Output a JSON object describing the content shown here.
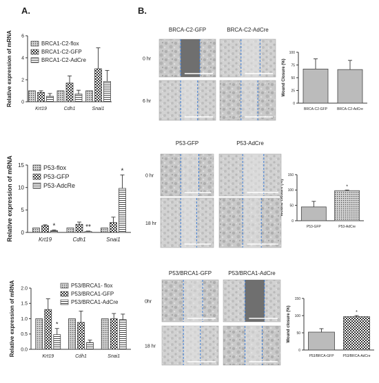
{
  "panels": {
    "a": "A.",
    "b": "B."
  },
  "colors": {
    "bar": "#bbbbbb",
    "stroke": "#444444",
    "error": "#333333",
    "axis": "#333333"
  },
  "chart_data": [
    {
      "type": "bar",
      "ylabel": "Relative expression of mRNA",
      "categories": [
        "Krt19",
        "Cdh1",
        "Snai1"
      ],
      "ylim": [
        0,
        6
      ],
      "yticks": [
        0,
        2,
        4,
        6
      ],
      "legend_position": "top-right",
      "series": [
        {
          "name": "BRCA1-C2-flox",
          "pattern": "dots",
          "values": [
            1.0,
            1.0,
            1.0
          ],
          "errors": [
            0.0,
            0.0,
            0.0
          ]
        },
        {
          "name": "BRCA1-C2-GFP",
          "pattern": "check",
          "values": [
            0.85,
            1.7,
            3.0
          ],
          "errors": [
            0.15,
            0.65,
            1.9
          ]
        },
        {
          "name": "BRCA1-C2-AdCre",
          "pattern": "hstripe",
          "values": [
            0.5,
            0.7,
            1.85
          ],
          "errors": [
            0.25,
            0.35,
            1.0
          ]
        }
      ],
      "significance": []
    },
    {
      "type": "bar",
      "ylabel": "Relative expression of mRNA",
      "categories": [
        "Krt19",
        "Cdh1",
        "Snai1"
      ],
      "ylim": [
        0,
        15
      ],
      "yticks": [
        0,
        5,
        10,
        15
      ],
      "legend_position": "top-right",
      "series": [
        {
          "name": "P53-flox",
          "pattern": "dots",
          "values": [
            1.0,
            1.0,
            1.0
          ],
          "errors": [
            0.0,
            0.0,
            0.0
          ]
        },
        {
          "name": "P53-GFP",
          "pattern": "check",
          "values": [
            1.5,
            1.8,
            2.2
          ],
          "errors": [
            0.2,
            0.5,
            1.2
          ]
        },
        {
          "name": "P53-AdcRe",
          "pattern": "hstripe",
          "values": [
            0.4,
            0.2,
            9.8
          ],
          "errors": [
            0.15,
            0.1,
            3.0
          ]
        }
      ],
      "significance": [
        {
          "category": 0,
          "series": 2,
          "label": "*"
        },
        {
          "category": 1,
          "series": 2,
          "label": "**"
        },
        {
          "category": 2,
          "series": 2,
          "label": "*"
        }
      ]
    },
    {
      "type": "bar",
      "ylabel": "Relative expression of mRNA",
      "categories": [
        "Krt19",
        "Cdh1",
        "Snai1"
      ],
      "ylim": [
        0,
        2.0
      ],
      "yticks": [
        0.0,
        0.5,
        1.0,
        1.5,
        2.0
      ],
      "legend_position": "top-right",
      "series": [
        {
          "name": "P53/BRCA1- flox",
          "pattern": "dots",
          "values": [
            1.0,
            1.0,
            1.0
          ],
          "errors": [
            0.0,
            0.0,
            0.0
          ]
        },
        {
          "name": "P53/BRCA1-GFP",
          "pattern": "check",
          "values": [
            1.3,
            0.88,
            1.0
          ],
          "errors": [
            0.35,
            0.37,
            0.17
          ]
        },
        {
          "name": "P53/BRCA1-AdCre",
          "pattern": "hstripe",
          "values": [
            0.48,
            0.22,
            0.97
          ],
          "errors": [
            0.2,
            0.08,
            0.18
          ]
        }
      ],
      "significance": [
        {
          "category": 0,
          "series": 2,
          "label": "*"
        }
      ]
    },
    {
      "type": "bar",
      "ylabel": "Wound Closure (%)",
      "categories": [
        "BRCA-C2-GFP",
        "BRCA-C2-AdCre"
      ],
      "ylim": [
        0,
        100
      ],
      "yticks": [
        0,
        25,
        50,
        75,
        100
      ],
      "series": [
        {
          "name": "",
          "patterns": [
            "none",
            "none"
          ],
          "values": [
            67,
            66
          ],
          "errors": [
            20,
            18
          ]
        }
      ],
      "significance": []
    },
    {
      "type": "bar",
      "ylabel": "Wound closure (%)",
      "categories": [
        "P53-GFP",
        "P53-AdCre"
      ],
      "ylim": [
        0,
        150
      ],
      "yticks": [
        0,
        50,
        100,
        150
      ],
      "series": [
        {
          "name": "",
          "patterns": [
            "none",
            "dots"
          ],
          "values": [
            45,
            98
          ],
          "errors": [
            18,
            2
          ]
        }
      ],
      "significance": [
        {
          "category": 1,
          "series": 0,
          "label": "*"
        }
      ]
    },
    {
      "type": "bar",
      "ylabel": "Wound closure (%)",
      "categories": [
        "P53/BRCA-GFP",
        "P53/BRCA-AdCre"
      ],
      "ylim": [
        0,
        150
      ],
      "yticks": [
        0,
        50,
        100,
        150
      ],
      "series": [
        {
          "name": "",
          "patterns": [
            "none",
            "check"
          ],
          "values": [
            52,
            97
          ],
          "errors": [
            10,
            3
          ]
        }
      ],
      "significance": [
        {
          "category": 1,
          "series": 0,
          "label": "*"
        }
      ]
    }
  ],
  "micrographs": [
    {
      "columns": [
        "BRCA-C2-GFP",
        "BRCA-C2-AdCre"
      ],
      "rows": [
        "0 hr",
        "6 hr"
      ]
    },
    {
      "columns": [
        "P53-GFP",
        "P53-AdCre"
      ],
      "rows": [
        "0 hr",
        "18 hr"
      ]
    },
    {
      "columns": [
        "P53/BRCA1-GFP",
        "P53/BRCA1-AdCre"
      ],
      "rows": [
        "0hr",
        "18 hr"
      ]
    }
  ]
}
